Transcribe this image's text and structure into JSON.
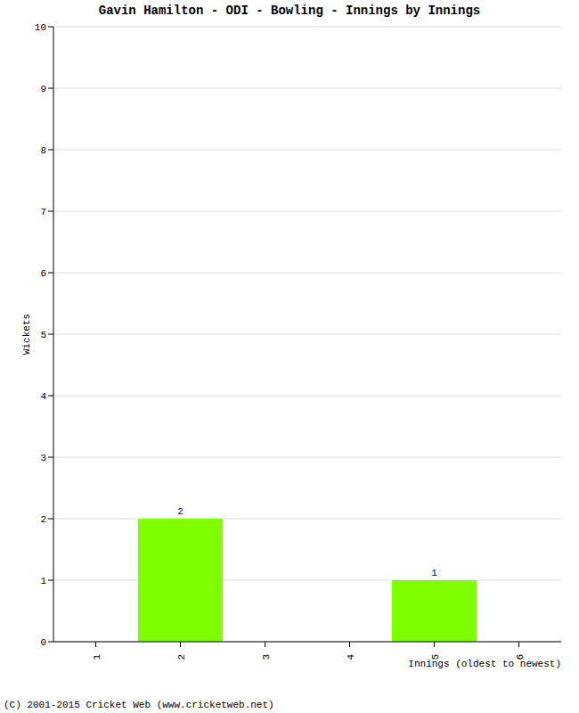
{
  "chart_data": {
    "type": "bar",
    "title": "Gavin Hamilton - ODI - Bowling - Innings by Innings",
    "x_label": "Innings (oldest to newest)",
    "y_label": "Wickets",
    "annotations": [
      "(C) 2001-2015 Cricket Web (www.cricketweb.net)"
    ],
    "categories": [
      "1",
      "2",
      "3",
      "4",
      "5",
      "6"
    ],
    "values": [
      0,
      2,
      0,
      0,
      1,
      0
    ],
    "color": "#7fff00",
    "ylim": [
      0,
      10
    ],
    "yticks": [
      0,
      1,
      2,
      3,
      4,
      5,
      6,
      7,
      8,
      9,
      10
    ],
    "grid": true,
    "data_labels": true
  }
}
